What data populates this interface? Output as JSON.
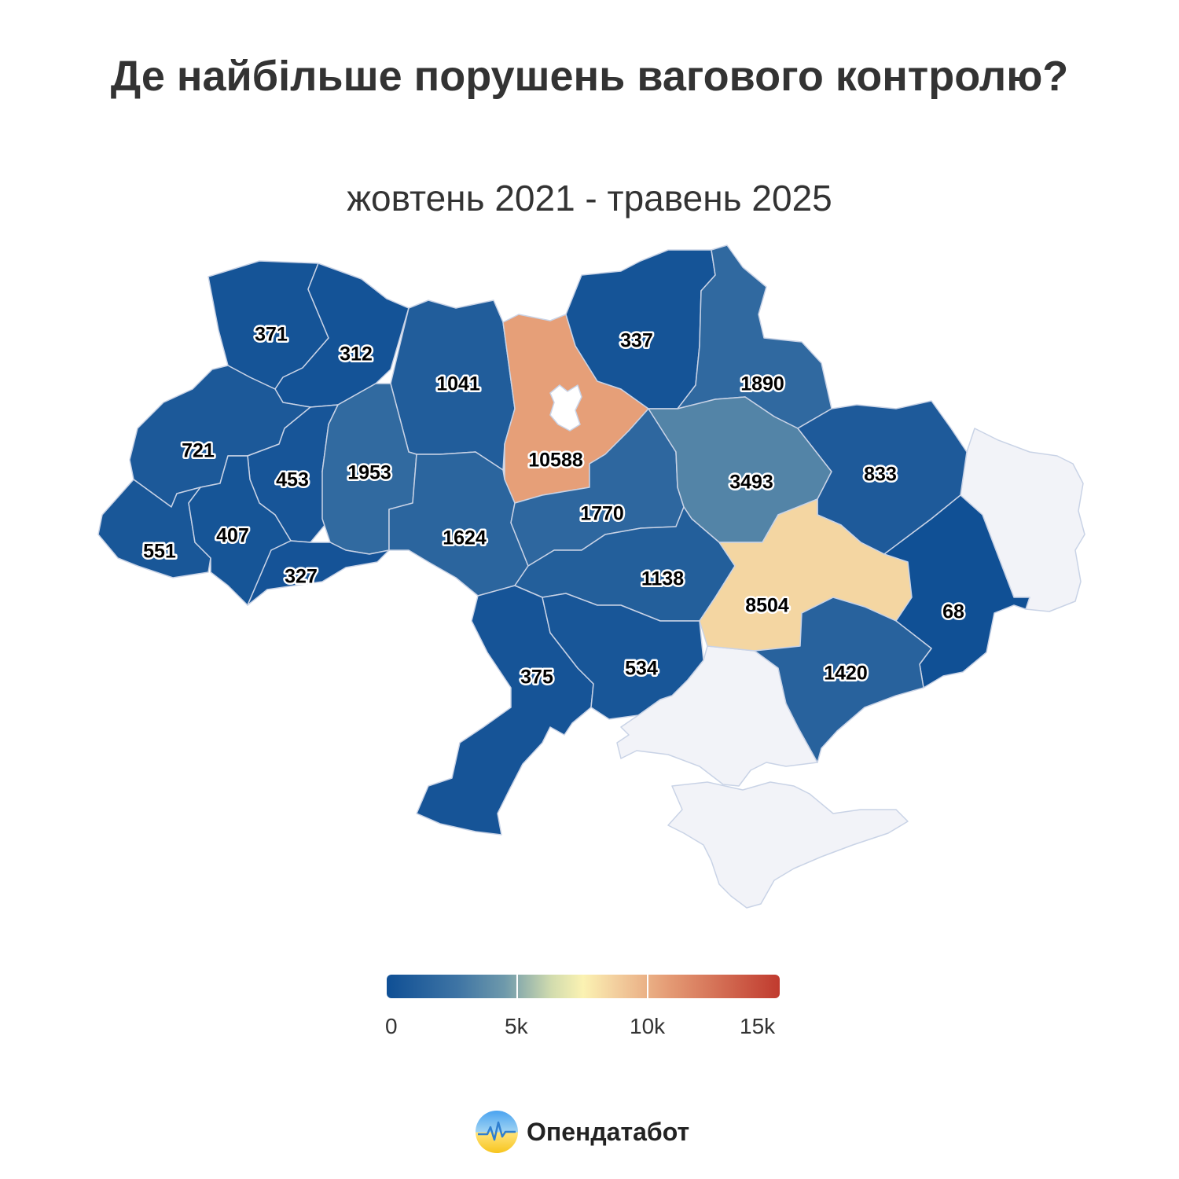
{
  "title": "Де найбільше порушень вагового контролю?",
  "subtitle": "жовтень 2021 - травень 2025",
  "brand": {
    "name": "Опендатабот",
    "logo_icon": "sun-chart-logo-icon"
  },
  "colors": {
    "low": "#0f4f95",
    "mid": "#fbf2b2",
    "high": "#c03a2e",
    "no_data": "#f2f3f8"
  },
  "legend": {
    "min": 0,
    "max": 15000,
    "ticks": [
      "0",
      "5k",
      "10k",
      "15k"
    ]
  },
  "regions": [
    {
      "id": "volyn",
      "value": "371"
    },
    {
      "id": "rivne",
      "value": "312"
    },
    {
      "id": "zhytomyr",
      "value": "1041"
    },
    {
      "id": "kyiv",
      "value": "10588"
    },
    {
      "id": "chernihiv",
      "value": "337"
    },
    {
      "id": "sumy",
      "value": "1890"
    },
    {
      "id": "lviv",
      "value": "721"
    },
    {
      "id": "ternopil",
      "value": "453"
    },
    {
      "id": "khmelnytskyi",
      "value": "1953"
    },
    {
      "id": "vinnytsia",
      "value": "1624"
    },
    {
      "id": "cherkasy",
      "value": "1770"
    },
    {
      "id": "poltava",
      "value": "3493"
    },
    {
      "id": "kharkiv",
      "value": "833"
    },
    {
      "id": "zakarpattia",
      "value": "551"
    },
    {
      "id": "ivano-frankivsk",
      "value": "407"
    },
    {
      "id": "chernivtsi",
      "value": "327"
    },
    {
      "id": "kirovohrad",
      "value": "1138"
    },
    {
      "id": "dnipropetrovsk",
      "value": "8504"
    },
    {
      "id": "donetsk",
      "value": "68"
    },
    {
      "id": "odesa",
      "value": "375"
    },
    {
      "id": "mykolaiv",
      "value": "534"
    },
    {
      "id": "zaporizhzhia",
      "value": "1420"
    }
  ]
}
